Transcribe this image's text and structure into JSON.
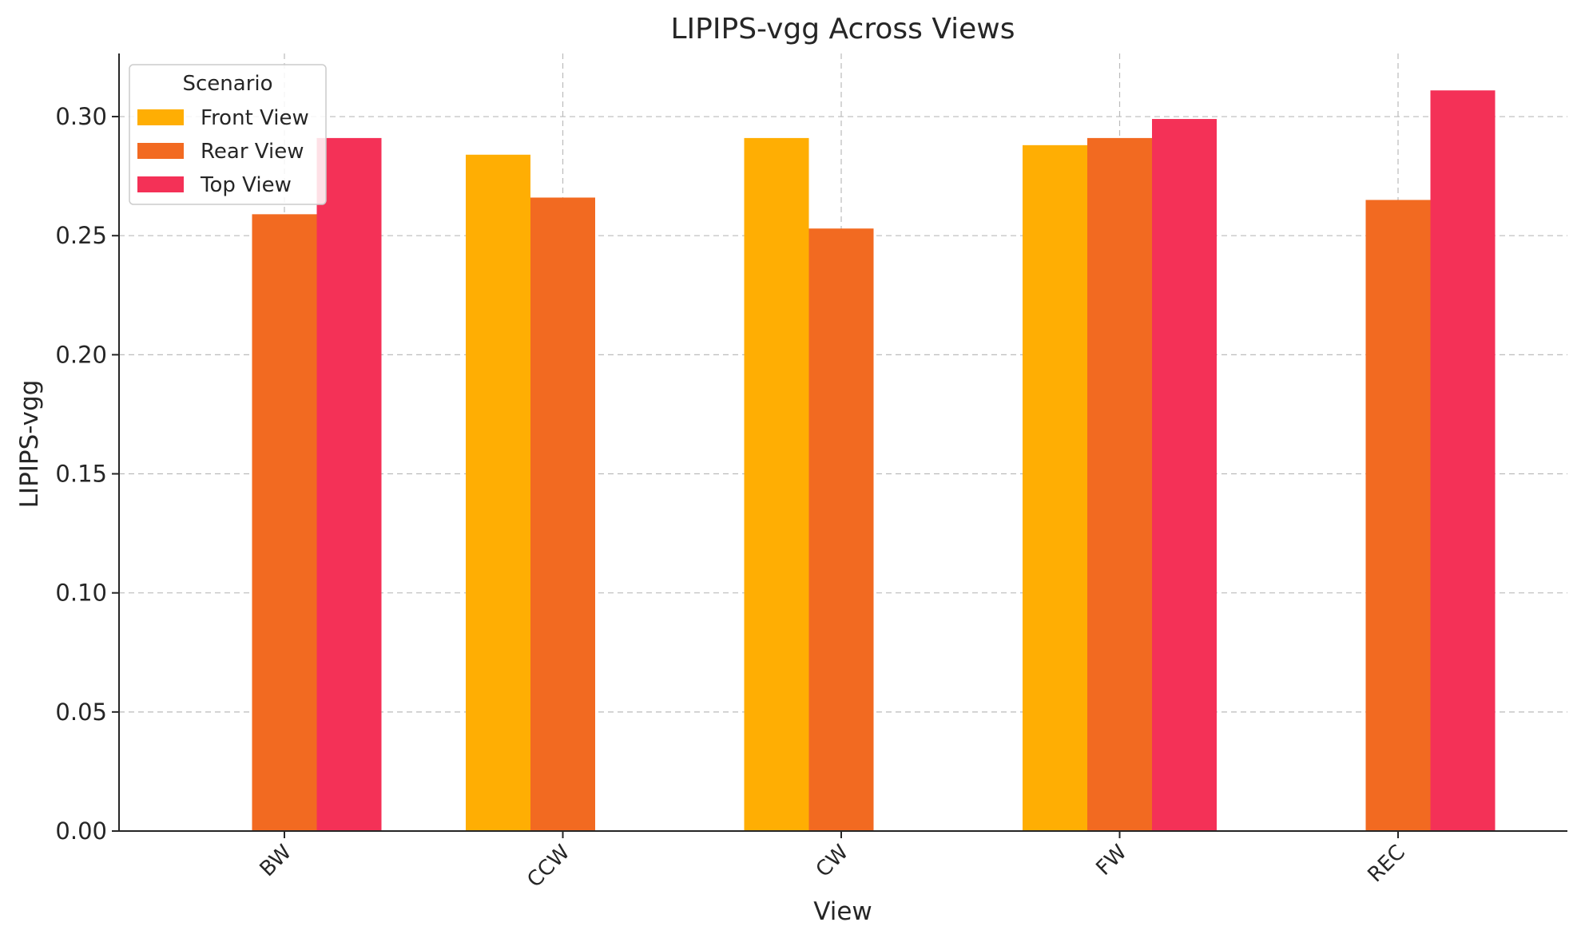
{
  "chart_data": {
    "type": "bar",
    "title": "LIPIPS-vgg Across Views",
    "xlabel": "View",
    "ylabel": "LIPIPS-vgg",
    "categories": [
      "BW",
      "CCW",
      "CW",
      "FW",
      "REC"
    ],
    "ylim": [
      0,
      0.3265
    ],
    "yticks": [
      "0.00",
      "0.05",
      "0.10",
      "0.15",
      "0.20",
      "0.25",
      "0.30"
    ],
    "grid": true,
    "legend": {
      "title": "Scenario",
      "position": "top-left"
    },
    "series": [
      {
        "name": "Front View",
        "color": "#FFAE03",
        "values": [
          null,
          0.284,
          0.291,
          0.288,
          null
        ]
      },
      {
        "name": "Rear View",
        "color": "#F26A21",
        "values": [
          0.259,
          0.266,
          0.253,
          0.291,
          0.265
        ]
      },
      {
        "name": "Top View",
        "color": "#F43157",
        "values": [
          0.291,
          null,
          null,
          0.299,
          0.311
        ]
      }
    ]
  }
}
